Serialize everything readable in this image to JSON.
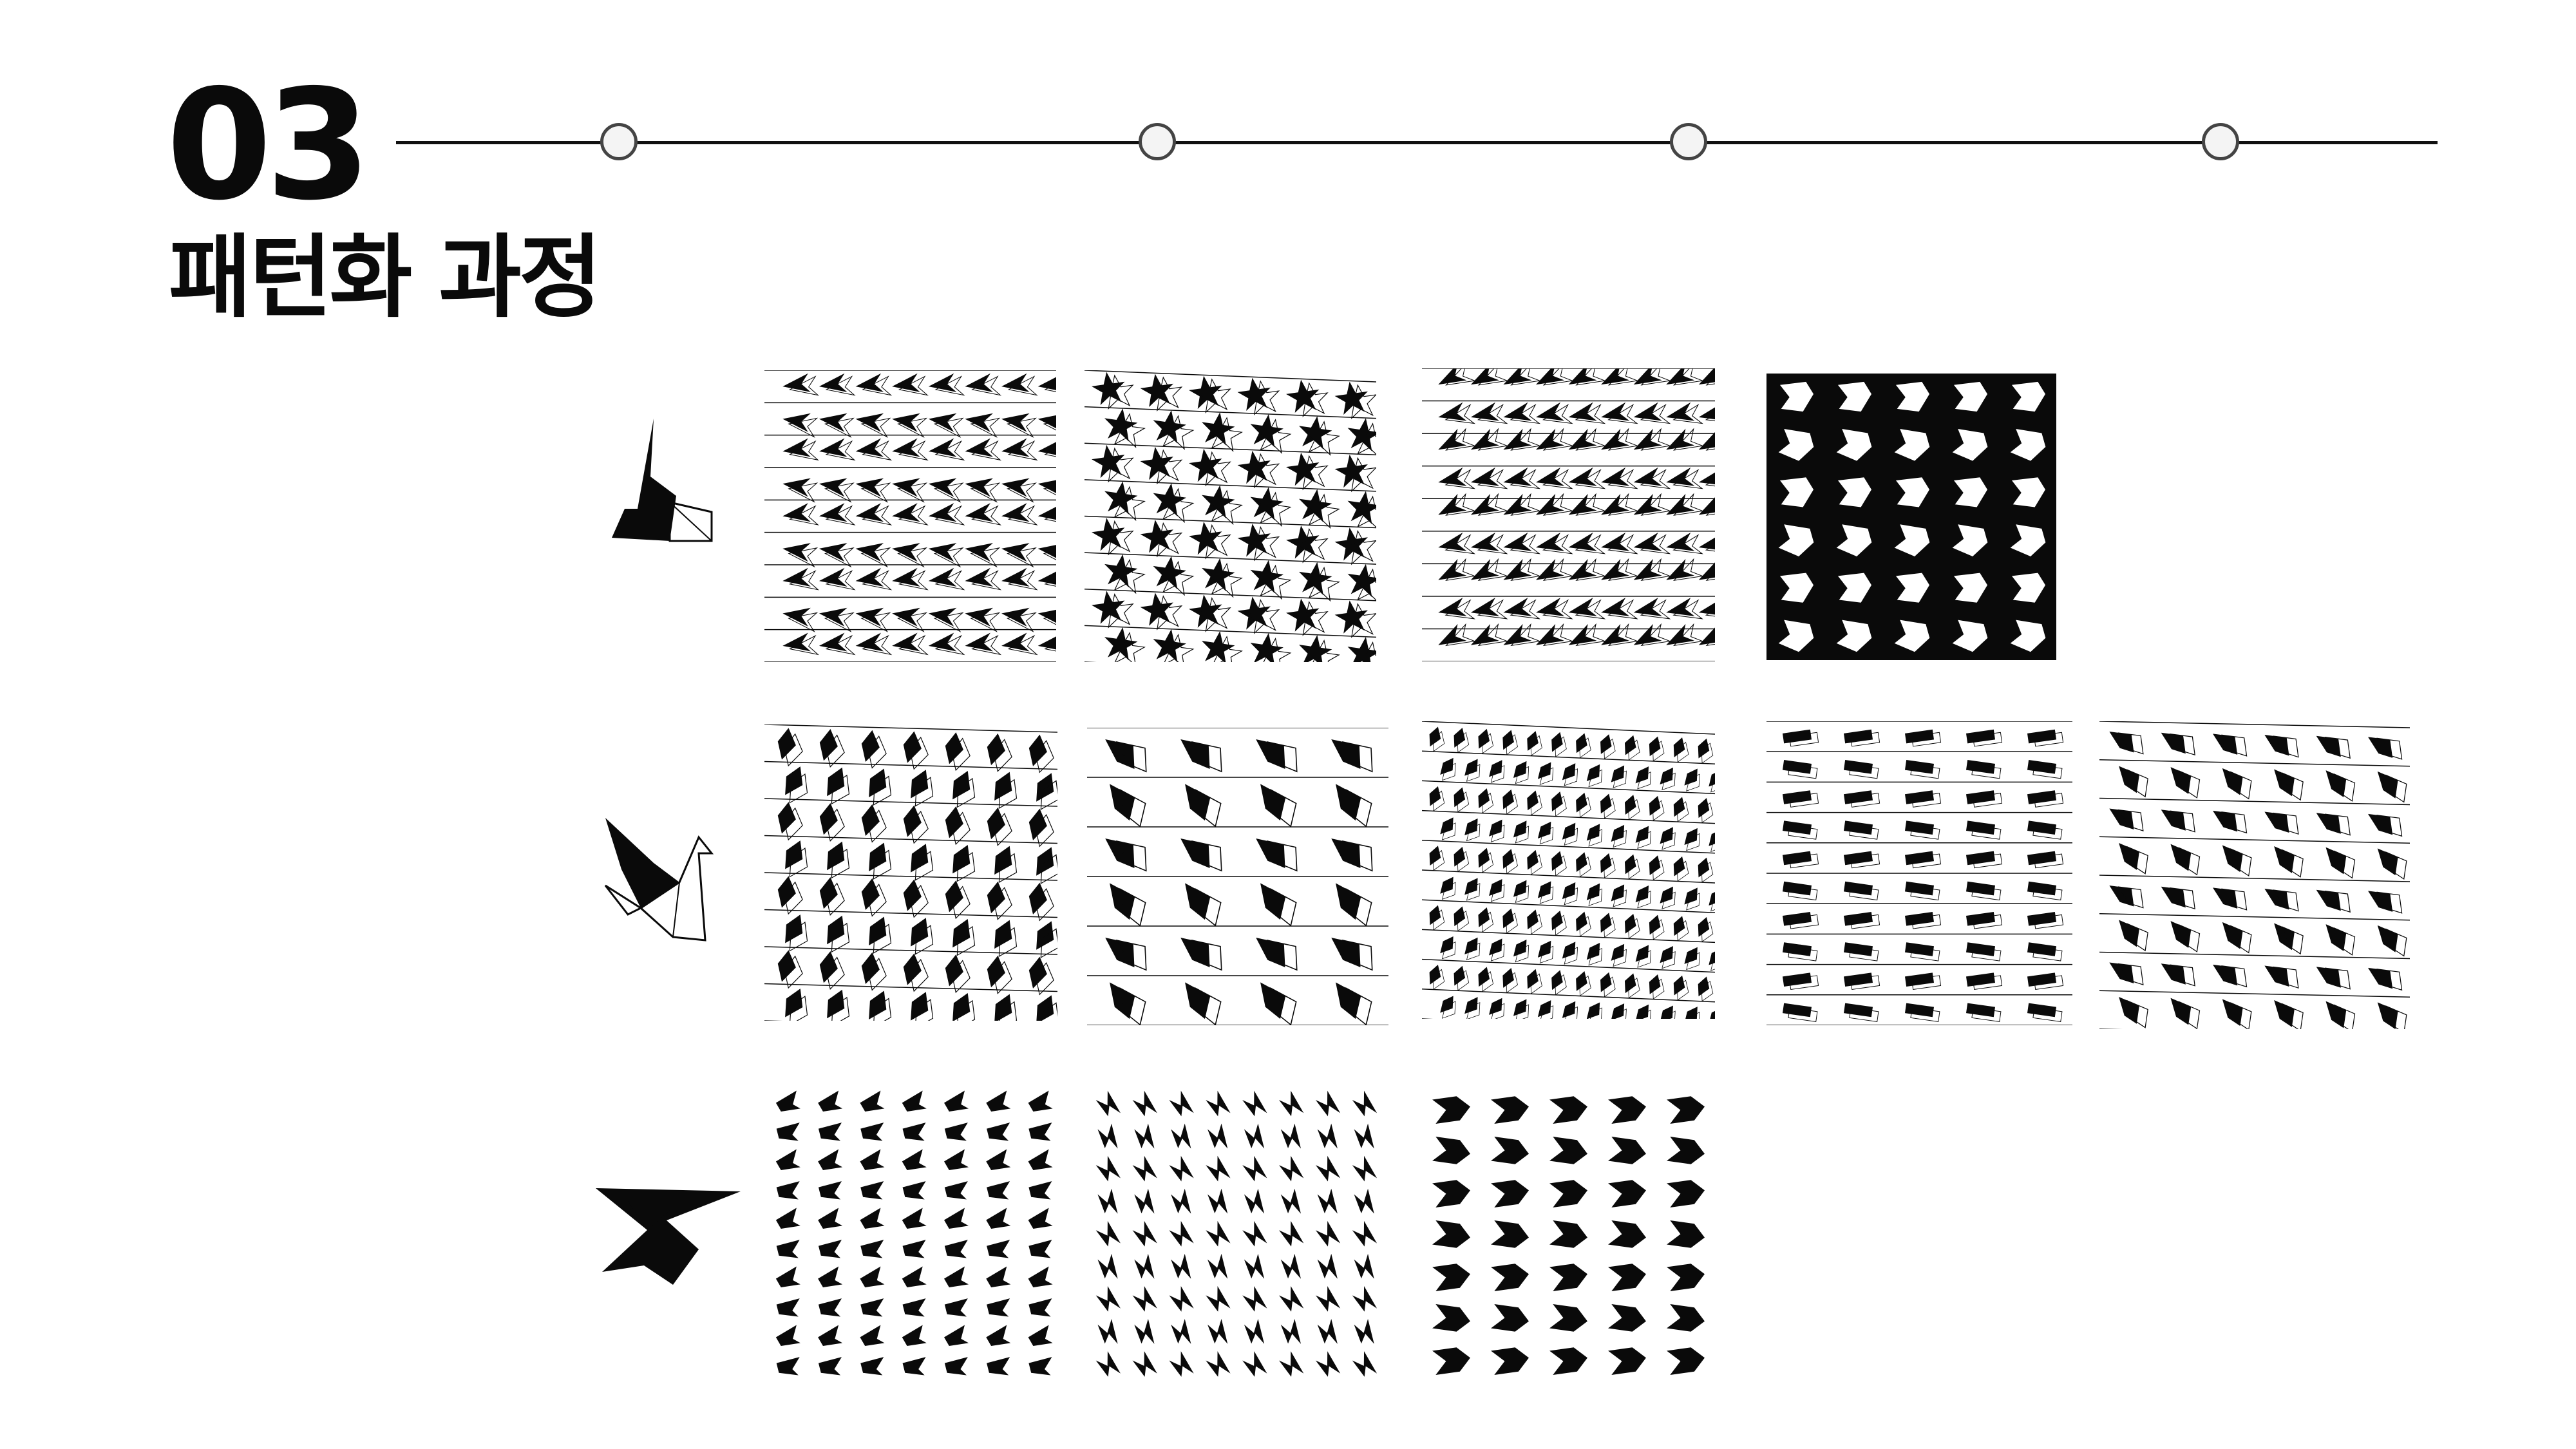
{
  "header": {
    "section_number": "03",
    "section_title": "패턴화 과정"
  },
  "progress": {
    "total_steps": 4,
    "current_step": 3
  },
  "colors": {
    "ink": "#0a0a0a",
    "paper": "#ffffff",
    "accent": "#0a0a0a"
  },
  "rows": [
    {
      "motif": "origami-fox-icon",
      "pattern_count": 4
    },
    {
      "motif": "origami-crane-icon",
      "pattern_count": 5
    },
    {
      "motif": "origami-bolt-icon",
      "pattern_count": 3
    }
  ]
}
